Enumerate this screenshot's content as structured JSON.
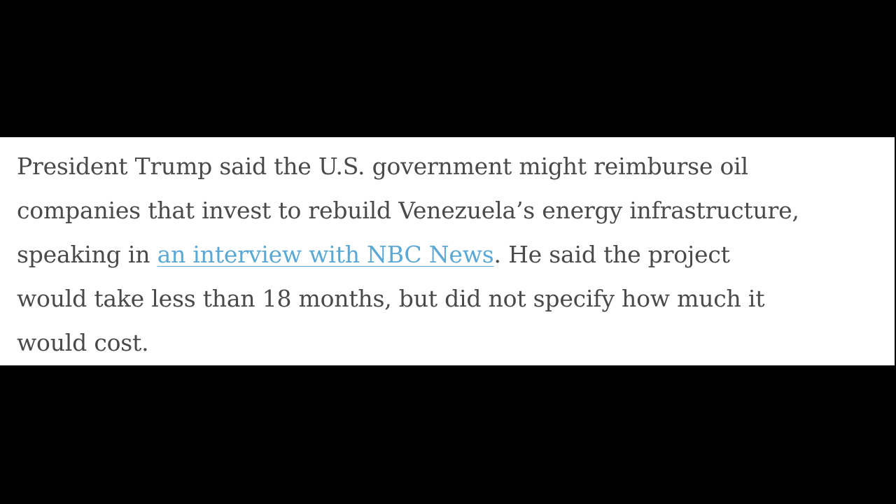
{
  "article": {
    "paragraph": {
      "lines": [
        "President Trump said the U.S. government might reimburse oil",
        "companies that invest to rebuild Venezuela’s energy infrastructure,",
        "speaking in ",
        ". He said the project",
        "would take less than 18 months, but did not specify how much it",
        "would cost."
      ],
      "link": "an interview with NBC News"
    }
  }
}
